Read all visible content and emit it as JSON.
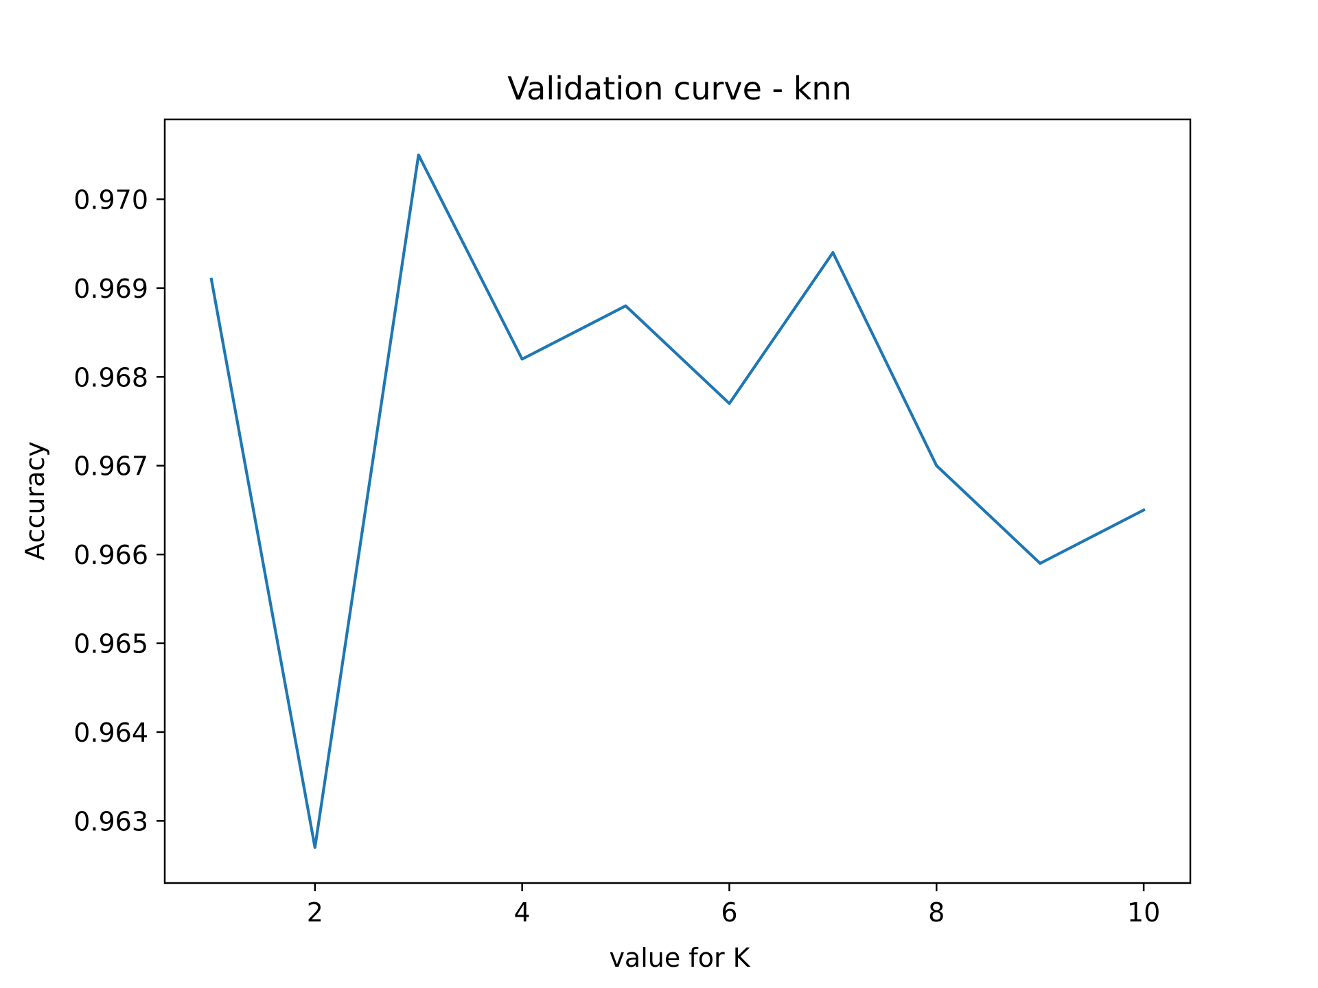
{
  "chart_data": {
    "type": "line",
    "title": "Validation curve - knn",
    "xlabel": "value for K",
    "ylabel": "Accuracy",
    "xlim": [
      0.55,
      10.45
    ],
    "ylim": [
      0.9623,
      0.9709
    ],
    "xticks": [
      2,
      4,
      6,
      8,
      10
    ],
    "xtick_labels": [
      "2",
      "4",
      "6",
      "8",
      "10"
    ],
    "yticks": [
      0.963,
      0.964,
      0.965,
      0.966,
      0.967,
      0.968,
      0.969,
      0.97
    ],
    "ytick_labels": [
      "0.963",
      "0.964",
      "0.965",
      "0.966",
      "0.967",
      "0.968",
      "0.969",
      "0.970"
    ],
    "grid": false,
    "line_color": "#1f77b4",
    "x": [
      1,
      2,
      3,
      4,
      5,
      6,
      7,
      8,
      9,
      10
    ],
    "y": [
      0.9691,
      0.9627,
      0.9705,
      0.9682,
      0.9688,
      0.9677,
      0.9694,
      0.967,
      0.9659,
      0.9665
    ]
  }
}
